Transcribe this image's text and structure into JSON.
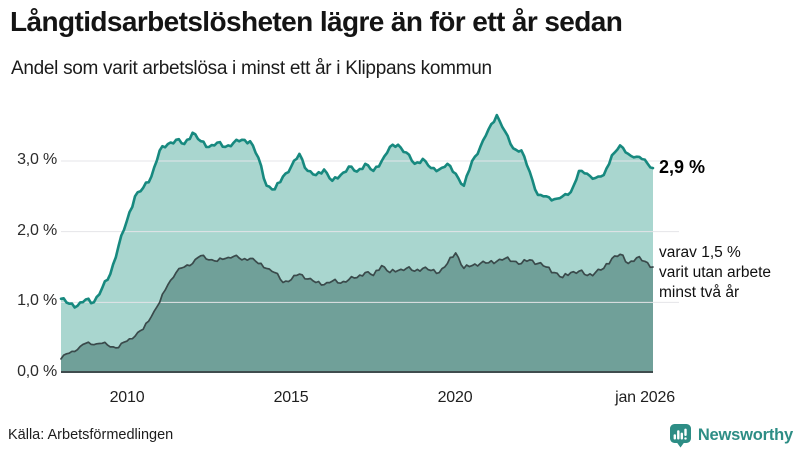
{
  "header": {
    "title": "Långtidsarbetslösheten lägre än för ett år sedan",
    "subtitle": "Andel som varit arbetslösa i minst ett år i Klippans kommun"
  },
  "annotations": {
    "end_value_label": "2,9 %",
    "subset_note": "varav 1,5 %\nvarit utan arbete\nminst två år"
  },
  "footer": {
    "source": "Källa: Arbetsförmedlingen",
    "brand": "Newsworthy"
  },
  "colors": {
    "total_line": "#17897f",
    "total_fill": "#a9d6cf",
    "subset_line": "#3a4a4b",
    "subset_fill": "#70a099",
    "gridline": "#e4e4e8",
    "axis": "#3f4c4e",
    "brand_teal": "#2d8d85"
  },
  "chart_data": {
    "type": "area",
    "title": "Långtidsarbetslösheten lägre än för ett år sedan",
    "subtitle": "Andel som varit arbetslösa i minst ett år i Klippans kommun",
    "unit": "%",
    "x_start": 2008.0,
    "x_step": 0.25,
    "x_end": 2026.0,
    "ylim": [
      0,
      3.7
    ],
    "grid": "horizontal",
    "x_tick_labels": [
      "2010",
      "2015",
      "2020",
      "jan 2026"
    ],
    "x_tick_positions": [
      2010,
      2015,
      2020,
      2025.75
    ],
    "y_ticks": [
      {
        "value": 3,
        "label": "3,0 %"
      },
      {
        "value": 2,
        "label": "2,0 %"
      },
      {
        "value": 1,
        "label": "1,0 %"
      },
      {
        "value": 0,
        "label": "0,0 %"
      }
    ],
    "series": [
      {
        "name": "Andel som varit arbetslösa minst ett år",
        "end_value": 2.9,
        "color": "#17897f",
        "fill": "#a9d6cf",
        "line_name": "total-line",
        "area_name": "total-area",
        "values": [
          1.05,
          0.98,
          0.95,
          1.04,
          1.0,
          1.2,
          1.4,
          1.8,
          2.15,
          2.5,
          2.62,
          2.78,
          3.15,
          3.24,
          3.3,
          3.24,
          3.4,
          3.28,
          3.2,
          3.26,
          3.2,
          3.26,
          3.3,
          3.28,
          3.05,
          2.65,
          2.6,
          2.78,
          2.92,
          3.1,
          2.86,
          2.8,
          2.88,
          2.72,
          2.8,
          2.92,
          2.85,
          2.96,
          2.86,
          3.0,
          3.2,
          3.23,
          3.12,
          2.96,
          3.03,
          2.9,
          2.88,
          2.96,
          2.82,
          2.65,
          3.0,
          3.2,
          3.45,
          3.65,
          3.42,
          3.18,
          3.15,
          2.85,
          2.52,
          2.5,
          2.46,
          2.5,
          2.56,
          2.86,
          2.82,
          2.76,
          2.8,
          3.08,
          3.22,
          3.1,
          3.06,
          3.02,
          2.9
        ]
      },
      {
        "name": "varav utan arbete minst två år",
        "end_value": 1.5,
        "color": "#3a4a4b",
        "fill": "#70a099",
        "line_name": "subset-line",
        "area_name": "subset-area",
        "values": [
          0.2,
          0.28,
          0.33,
          0.42,
          0.4,
          0.42,
          0.37,
          0.36,
          0.45,
          0.52,
          0.62,
          0.8,
          1.0,
          1.25,
          1.42,
          1.5,
          1.55,
          1.66,
          1.6,
          1.58,
          1.62,
          1.65,
          1.6,
          1.62,
          1.55,
          1.48,
          1.42,
          1.28,
          1.32,
          1.4,
          1.33,
          1.28,
          1.25,
          1.3,
          1.27,
          1.32,
          1.35,
          1.42,
          1.38,
          1.52,
          1.42,
          1.45,
          1.48,
          1.44,
          1.48,
          1.45,
          1.42,
          1.55,
          1.7,
          1.48,
          1.52,
          1.55,
          1.56,
          1.58,
          1.62,
          1.58,
          1.55,
          1.6,
          1.55,
          1.5,
          1.42,
          1.35,
          1.42,
          1.44,
          1.38,
          1.42,
          1.48,
          1.62,
          1.68,
          1.55,
          1.63,
          1.58,
          1.5
        ]
      }
    ]
  }
}
